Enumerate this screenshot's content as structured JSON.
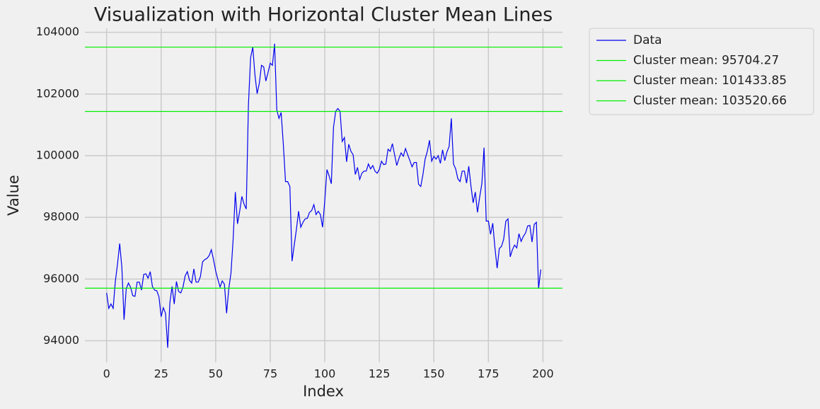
{
  "chart_data": {
    "type": "line",
    "title": "Visualization with Horizontal Cluster Mean Lines",
    "x_label": "Index",
    "y_label": "Value",
    "x": [
      0,
      1,
      2,
      3,
      4,
      5,
      6,
      7,
      8,
      9,
      10,
      11,
      12,
      13,
      14,
      15,
      16,
      17,
      18,
      19,
      20,
      21,
      22,
      23,
      24,
      25,
      26,
      27,
      28,
      29,
      30,
      31,
      32,
      33,
      34,
      35,
      36,
      37,
      38,
      39,
      40,
      41,
      42,
      43,
      44,
      45,
      46,
      47,
      48,
      49,
      50,
      51,
      52,
      53,
      54,
      55,
      56,
      57,
      58,
      59,
      60,
      61,
      62,
      63,
      64,
      65,
      66,
      67,
      68,
      69,
      70,
      71,
      72,
      73,
      74,
      75,
      76,
      77,
      78,
      79,
      80,
      81,
      82,
      83,
      84,
      85,
      86,
      87,
      88,
      89,
      90,
      91,
      92,
      93,
      94,
      95,
      96,
      97,
      98,
      99,
      100,
      101,
      102,
      103,
      104,
      105,
      106,
      107,
      108,
      109,
      110,
      111,
      112,
      113,
      114,
      115,
      116,
      117,
      118,
      119,
      120,
      121,
      122,
      123,
      124,
      125,
      126,
      127,
      128,
      129,
      130,
      131,
      132,
      133,
      134,
      135,
      136,
      137,
      138,
      139,
      140,
      141,
      142,
      143,
      144,
      145,
      146,
      147,
      148,
      149,
      150,
      151,
      152,
      153,
      154,
      155,
      156,
      157,
      158,
      159,
      160,
      161,
      162,
      163,
      164,
      165,
      166,
      167,
      168,
      169,
      170,
      171,
      172,
      173,
      174,
      175,
      176,
      177,
      178,
      179,
      180,
      181,
      182,
      183,
      184,
      185,
      186,
      187,
      188,
      189,
      190,
      191,
      192,
      193,
      194,
      195,
      196,
      197,
      198,
      199
    ],
    "series": [
      {
        "name": "Data",
        "color": "#0000ee",
        "values": [
          95550,
          95050,
          95190,
          95050,
          95920,
          96490,
          97150,
          96370,
          94680,
          95690,
          95870,
          95730,
          95460,
          95440,
          95900,
          95900,
          95640,
          96150,
          96170,
          96030,
          96240,
          95760,
          95640,
          95620,
          95420,
          94780,
          95070,
          94890,
          93770,
          95230,
          95760,
          95190,
          95920,
          95600,
          95550,
          95740,
          96100,
          96240,
          95960,
          95870,
          96330,
          95900,
          95900,
          96080,
          96560,
          96630,
          96670,
          96760,
          96950,
          96630,
          96260,
          95990,
          95740,
          95940,
          95830,
          94890,
          95690,
          96190,
          97290,
          98820,
          97790,
          98200,
          98680,
          98430,
          98270,
          101630,
          103180,
          103520,
          102610,
          102010,
          102350,
          102930,
          102880,
          102420,
          102700,
          103000,
          102930,
          103630,
          101490,
          101210,
          101400,
          100370,
          99160,
          99160,
          99000,
          96580,
          97100,
          97610,
          98200,
          97680,
          97840,
          97950,
          97970,
          98160,
          98220,
          98410,
          98090,
          98200,
          98090,
          97680,
          98540,
          99550,
          99340,
          99090,
          100920,
          101440,
          101530,
          101440,
          100460,
          100590,
          99800,
          100370,
          100140,
          100030,
          99390,
          99620,
          99230,
          99430,
          99500,
          99500,
          99730,
          99570,
          99680,
          99500,
          99430,
          99550,
          99820,
          99710,
          99730,
          100210,
          100140,
          100390,
          100030,
          99680,
          99910,
          100090,
          99980,
          100230,
          100030,
          99840,
          99640,
          99780,
          99780,
          99070,
          99000,
          99390,
          99890,
          100140,
          100500,
          99820,
          99980,
          99890,
          100000,
          99750,
          100190,
          99840,
          100120,
          100300,
          101210,
          99730,
          99570,
          99250,
          99160,
          99500,
          99500,
          99110,
          99660,
          99020,
          98470,
          98820,
          98160,
          98660,
          99090,
          100260,
          97880,
          97880,
          97450,
          97810,
          97010,
          96350,
          96990,
          97060,
          97290,
          97880,
          97950,
          96720,
          96950,
          97100,
          97010,
          97470,
          97220,
          97380,
          97490,
          97720,
          97740,
          97200,
          97770,
          97840,
          95690,
          96310
        ]
      }
    ],
    "hlines": [
      {
        "name": "Cluster mean: 95704.27",
        "value": 95704.27,
        "color": "#00ee00"
      },
      {
        "name": "Cluster mean: 101433.85",
        "value": 101433.85,
        "color": "#00ee00"
      },
      {
        "name": "Cluster mean: 103520.66",
        "value": 103520.66,
        "color": "#00ee00"
      }
    ],
    "xlim": [
      -9.95,
      208.95
    ],
    "ylim": [
      93300,
      104130
    ],
    "xticks": [
      0,
      25,
      50,
      75,
      100,
      125,
      150,
      175,
      200
    ],
    "yticks": [
      94000,
      96000,
      98000,
      100000,
      102000,
      104000
    ],
    "grid": true,
    "legend": "outside-upper-right"
  }
}
